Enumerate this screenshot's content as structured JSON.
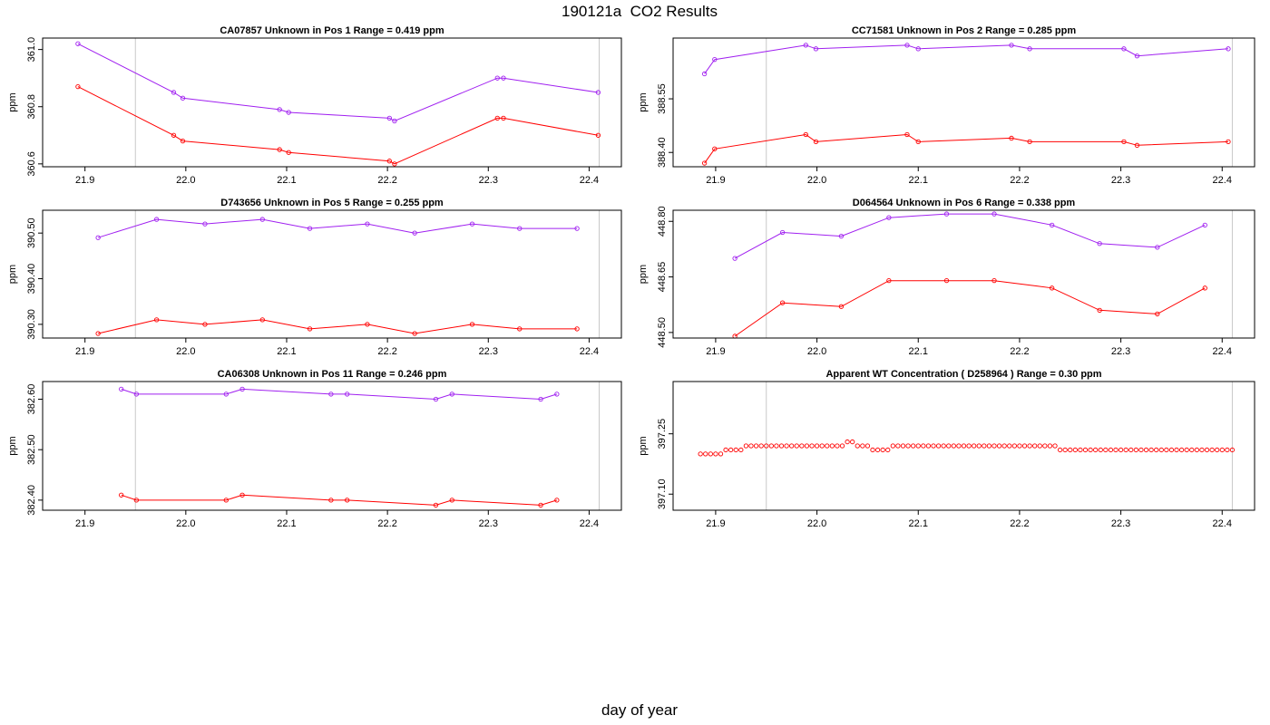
{
  "title": "190121a  CO2 Results",
  "xlabel": "day of year",
  "chart_data": [
    {
      "type": "line",
      "title": "CA07857    Unknown in Pos 1         Range =  0.419 ppm",
      "ylabel": "ppm",
      "xlim": [
        21.858,
        22.432
      ],
      "ylim": [
        360.59,
        361.04
      ],
      "xticks": [
        "21.9",
        "22.0",
        "22.1",
        "22.2",
        "22.3",
        "22.4"
      ],
      "yticks": [
        "360.6",
        "360.8",
        "361.0"
      ],
      "vlines": [
        21.95,
        22.41
      ],
      "series": [
        {
          "color": "#a020f0",
          "x": [
            21.893,
            21.988,
            21.997,
            22.093,
            22.102,
            22.202,
            22.207,
            22.309,
            22.315,
            22.409
          ],
          "y": [
            361.02,
            360.85,
            360.83,
            360.79,
            360.78,
            360.76,
            360.75,
            360.9,
            360.9,
            360.85
          ]
        },
        {
          "color": "#ff0000",
          "x": [
            21.893,
            21.988,
            21.997,
            22.093,
            22.102,
            22.202,
            22.207,
            22.309,
            22.315,
            22.409
          ],
          "y": [
            360.87,
            360.7,
            360.68,
            360.65,
            360.64,
            360.61,
            360.6,
            360.76,
            360.76,
            360.7
          ]
        }
      ]
    },
    {
      "type": "line",
      "title": "CC71581    Unknown in Pos 2         Range =  0.285 ppm",
      "ylabel": "ppm",
      "xlim": [
        21.858,
        22.432
      ],
      "ylim": [
        388.36,
        388.72
      ],
      "xticks": [
        "21.9",
        "22.0",
        "22.1",
        "22.2",
        "22.3",
        "22.4"
      ],
      "yticks": [
        "388.40",
        "388.55"
      ],
      "vlines": [
        21.95,
        22.41
      ],
      "series": [
        {
          "color": "#a020f0",
          "x": [
            21.889,
            21.899,
            21.989,
            21.999,
            22.089,
            22.1,
            22.192,
            22.21,
            22.303,
            22.316,
            22.406
          ],
          "y": [
            388.62,
            388.66,
            388.7,
            388.69,
            388.7,
            388.69,
            388.7,
            388.69,
            388.69,
            388.67,
            388.69
          ]
        },
        {
          "color": "#ff0000",
          "x": [
            21.889,
            21.899,
            21.989,
            21.999,
            22.089,
            22.1,
            22.192,
            22.21,
            22.303,
            22.316,
            22.406
          ],
          "y": [
            388.37,
            388.41,
            388.45,
            388.43,
            388.45,
            388.43,
            388.44,
            388.43,
            388.43,
            388.42,
            388.43
          ]
        }
      ]
    },
    {
      "type": "line",
      "title": "D743656    Unknown in Pos 5         Range =  0.255 ppm",
      "ylabel": "ppm",
      "xlim": [
        21.858,
        22.432
      ],
      "ylim": [
        390.27,
        390.55
      ],
      "xticks": [
        "21.9",
        "22.0",
        "22.1",
        "22.2",
        "22.3",
        "22.4"
      ],
      "yticks": [
        "390.30",
        "390.40",
        "390.50"
      ],
      "vlines": [
        21.95,
        22.41
      ],
      "series": [
        {
          "color": "#a020f0",
          "x": [
            21.913,
            21.971,
            22.019,
            22.076,
            22.123,
            22.18,
            22.227,
            22.284,
            22.331,
            22.388
          ],
          "y": [
            390.49,
            390.53,
            390.52,
            390.53,
            390.51,
            390.52,
            390.5,
            390.52,
            390.51,
            390.51
          ]
        },
        {
          "color": "#ff0000",
          "x": [
            21.913,
            21.971,
            22.019,
            22.076,
            22.123,
            22.18,
            22.227,
            22.284,
            22.331,
            22.388
          ],
          "y": [
            390.28,
            390.31,
            390.3,
            390.31,
            390.29,
            390.3,
            390.28,
            390.3,
            390.29,
            390.29
          ]
        }
      ]
    },
    {
      "type": "line",
      "title": "D064564    Unknown in Pos 6         Range =  0.338 ppm",
      "ylabel": "ppm",
      "xlim": [
        21.858,
        22.432
      ],
      "ylim": [
        448.485,
        448.83
      ],
      "xticks": [
        "21.9",
        "22.0",
        "22.1",
        "22.2",
        "22.3",
        "22.4"
      ],
      "yticks": [
        "448.50",
        "448.65",
        "448.80"
      ],
      "vlines": [
        21.95,
        22.41
      ],
      "series": [
        {
          "color": "#a020f0",
          "x": [
            21.919,
            21.966,
            22.024,
            22.071,
            22.128,
            22.175,
            22.232,
            22.279,
            22.336,
            22.383
          ],
          "y": [
            448.7,
            448.77,
            448.76,
            448.81,
            448.82,
            448.82,
            448.79,
            448.74,
            448.73,
            448.79
          ]
        },
        {
          "color": "#ff0000",
          "x": [
            21.919,
            21.966,
            22.024,
            22.071,
            22.128,
            22.175,
            22.232,
            22.279,
            22.336,
            22.383
          ],
          "y": [
            448.49,
            448.58,
            448.57,
            448.64,
            448.64,
            448.64,
            448.62,
            448.56,
            448.55,
            448.62
          ]
        }
      ]
    },
    {
      "type": "line",
      "title": "CA06308    Unknown in Pos 11         Range =  0.246 ppm",
      "ylabel": "ppm",
      "xlim": [
        21.858,
        22.432
      ],
      "ylim": [
        382.38,
        382.635
      ],
      "xticks": [
        "21.9",
        "22.0",
        "22.1",
        "22.2",
        "22.3",
        "22.4"
      ],
      "yticks": [
        "382.40",
        "382.50",
        "382.60"
      ],
      "vlines": [
        21.95,
        22.41
      ],
      "series": [
        {
          "color": "#a020f0",
          "x": [
            21.936,
            21.951,
            22.04,
            22.056,
            22.144,
            22.16,
            22.248,
            22.264,
            22.352,
            22.368
          ],
          "y": [
            382.62,
            382.61,
            382.61,
            382.62,
            382.61,
            382.61,
            382.6,
            382.61,
            382.6,
            382.61
          ]
        },
        {
          "color": "#ff0000",
          "x": [
            21.936,
            21.951,
            22.04,
            22.056,
            22.144,
            22.16,
            22.248,
            22.264,
            22.352,
            22.368
          ],
          "y": [
            382.41,
            382.4,
            382.4,
            382.41,
            382.4,
            382.4,
            382.39,
            382.4,
            382.39,
            382.4
          ]
        }
      ]
    },
    {
      "type": "scatter",
      "title": "Apparent WT Concentration ( D258964 )         Range = 0.30 ppm",
      "ylabel": "ppm",
      "xlim": [
        21.858,
        22.432
      ],
      "ylim": [
        397.06,
        397.38
      ],
      "xticks": [
        "21.9",
        "22.0",
        "22.1",
        "22.2",
        "22.3",
        "22.4"
      ],
      "yticks": [
        "397.10",
        "397.25"
      ],
      "vlines": [
        21.95,
        22.41
      ],
      "series": [
        {
          "color": "#ff0000",
          "marker": "circle",
          "x": [
            21.885,
            21.89,
            21.895,
            21.9,
            21.905,
            21.91,
            21.915,
            21.92,
            21.925,
            21.93,
            21.935,
            21.94,
            21.945,
            21.95,
            21.955,
            21.96,
            21.965,
            21.97,
            21.975,
            21.98,
            21.985,
            21.99,
            21.995,
            22.0,
            22.005,
            22.01,
            22.015,
            22.02,
            22.025,
            22.03,
            22.035,
            22.04,
            22.045,
            22.05,
            22.055,
            22.06,
            22.065,
            22.07,
            22.075,
            22.08,
            22.085,
            22.09,
            22.095,
            22.1,
            22.105,
            22.11,
            22.115,
            22.12,
            22.125,
            22.13,
            22.135,
            22.14,
            22.145,
            22.15,
            22.155,
            22.16,
            22.165,
            22.17,
            22.175,
            22.18,
            22.185,
            22.19,
            22.195,
            22.2,
            22.205,
            22.21,
            22.215,
            22.22,
            22.225,
            22.23,
            22.235,
            22.24,
            22.245,
            22.25,
            22.255,
            22.26,
            22.265,
            22.27,
            22.275,
            22.28,
            22.285,
            22.29,
            22.295,
            22.3,
            22.305,
            22.31,
            22.315,
            22.32,
            22.325,
            22.33,
            22.335,
            22.34,
            22.345,
            22.35,
            22.355,
            22.36,
            22.365,
            22.37,
            22.375,
            22.38,
            22.385,
            22.39,
            22.395,
            22.4,
            22.405,
            22.41
          ],
          "y": [
            397.2,
            397.2,
            397.2,
            397.2,
            397.2,
            397.21,
            397.21,
            397.21,
            397.21,
            397.22,
            397.22,
            397.22,
            397.22,
            397.22,
            397.22,
            397.22,
            397.22,
            397.22,
            397.22,
            397.22,
            397.22,
            397.22,
            397.22,
            397.22,
            397.22,
            397.22,
            397.22,
            397.22,
            397.22,
            397.23,
            397.23,
            397.22,
            397.22,
            397.22,
            397.21,
            397.21,
            397.21,
            397.21,
            397.22,
            397.22,
            397.22,
            397.22,
            397.22,
            397.22,
            397.22,
            397.22,
            397.22,
            397.22,
            397.22,
            397.22,
            397.22,
            397.22,
            397.22,
            397.22,
            397.22,
            397.22,
            397.22,
            397.22,
            397.22,
            397.22,
            397.22,
            397.22,
            397.22,
            397.22,
            397.22,
            397.22,
            397.22,
            397.22,
            397.22,
            397.22,
            397.22,
            397.21,
            397.21,
            397.21,
            397.21,
            397.21,
            397.21,
            397.21,
            397.21,
            397.21,
            397.21,
            397.21,
            397.21,
            397.21,
            397.21,
            397.21,
            397.21,
            397.21,
            397.21,
            397.21,
            397.21,
            397.21,
            397.21,
            397.21,
            397.21,
            397.21,
            397.21,
            397.21,
            397.21,
            397.21,
            397.21,
            397.21,
            397.21,
            397.21,
            397.21,
            397.21
          ]
        }
      ]
    }
  ]
}
